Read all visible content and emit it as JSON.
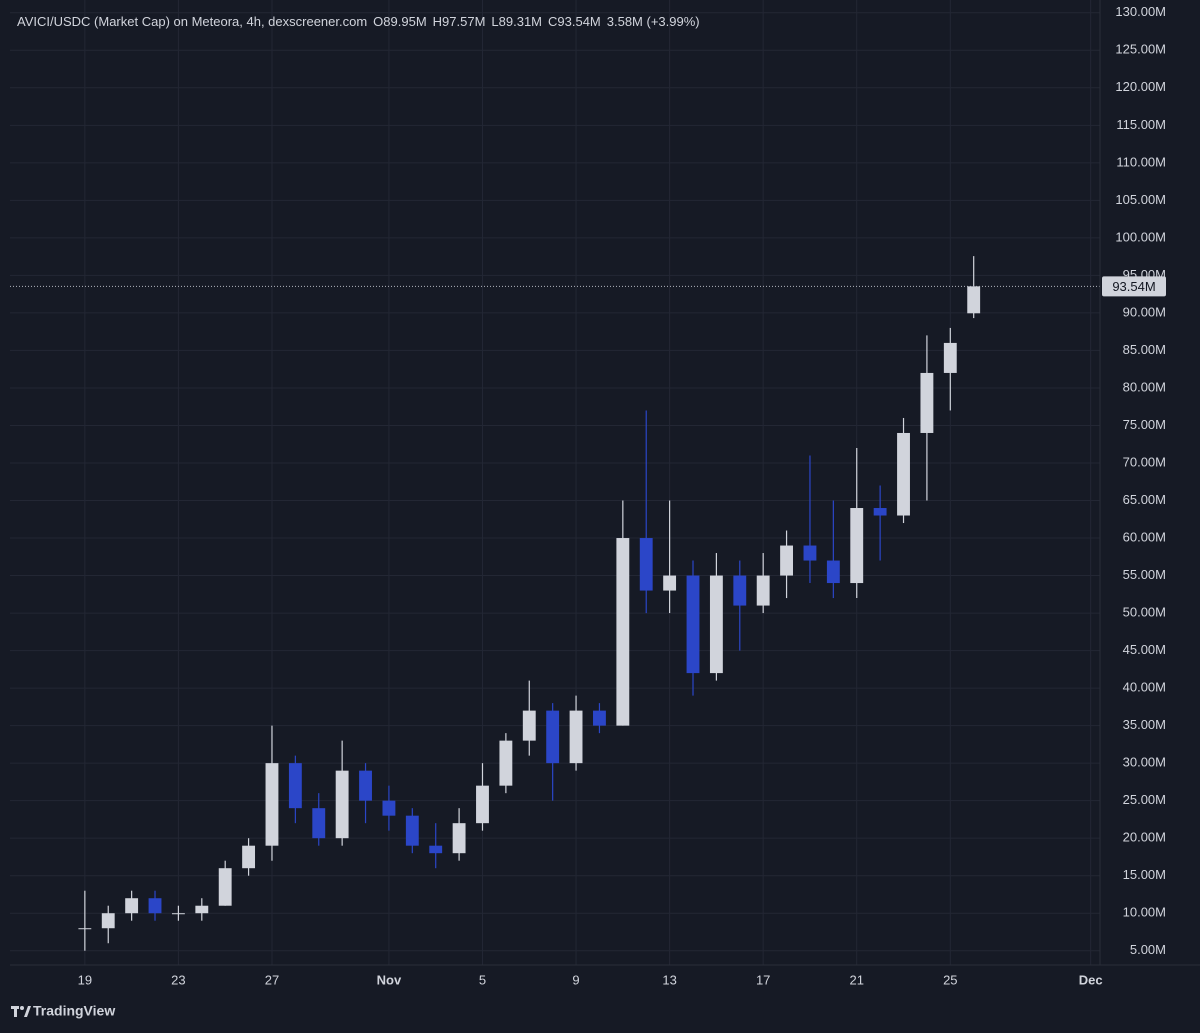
{
  "chart_data": {
    "type": "candlestick",
    "title": "AVICI/USDC (Market Cap) on Meteora, 4h, dexscreener.com",
    "ohlc_labels": [
      "O89.95M",
      "H97.57M",
      "L89.31M",
      "C93.54M",
      "3.58M (+3.99%)"
    ],
    "x": [
      0,
      1,
      2,
      3,
      4,
      5,
      6,
      7,
      8,
      9,
      10,
      11,
      12,
      13,
      14,
      15,
      16,
      17,
      18,
      19,
      20,
      21,
      22,
      23,
      24,
      25,
      26,
      27,
      28,
      29,
      30,
      31,
      32,
      33,
      34,
      35,
      36,
      37,
      38
    ],
    "open": [
      8,
      8,
      10,
      12,
      10,
      10,
      11,
      16,
      19,
      30,
      24,
      20,
      29,
      25,
      23,
      19,
      18,
      22,
      27,
      33,
      37,
      30,
      37,
      35,
      60,
      53,
      55,
      42,
      55,
      51,
      55,
      59,
      57,
      54,
      64,
      63,
      74,
      82,
      89.95
    ],
    "high": [
      13,
      11,
      13,
      13,
      11,
      12,
      17,
      20,
      35,
      31,
      26,
      33,
      30,
      27,
      24,
      22,
      24,
      30,
      34,
      41,
      38,
      39,
      38,
      65,
      77,
      65,
      57,
      58,
      57,
      58,
      61,
      71,
      65,
      72,
      67,
      76,
      87,
      88,
      97.57
    ],
    "low": [
      5,
      6,
      9,
      9,
      9,
      9,
      11,
      15,
      17,
      22,
      19,
      19,
      22,
      21,
      18,
      16,
      17,
      21,
      26,
      31,
      25,
      29,
      34,
      35,
      50,
      50,
      39,
      41,
      45,
      50,
      52,
      54,
      52,
      52,
      57,
      62,
      65,
      77,
      89.31
    ],
    "close": [
      8,
      10,
      12,
      10,
      10,
      11,
      16,
      19,
      30,
      24,
      20,
      29,
      25,
      23,
      19,
      18,
      22,
      27,
      33,
      37,
      30,
      37,
      35,
      60,
      53,
      55,
      42,
      55,
      51,
      55,
      59,
      57,
      54,
      64,
      63,
      74,
      82,
      86,
      93.54
    ],
    "up_color": "#d1d4dc",
    "down_color": "#2b46c8",
    "xlim": [
      -3.2,
      43.4
    ],
    "ylim": [
      3.1,
      131.7
    ],
    "xticks": [
      {
        "value": 0,
        "label": "19"
      },
      {
        "value": 4,
        "label": "23"
      },
      {
        "value": 8,
        "label": "27"
      },
      {
        "value": 13,
        "label": "Nov"
      },
      {
        "value": 17,
        "label": "5"
      },
      {
        "value": 21,
        "label": "9"
      },
      {
        "value": 25,
        "label": "13"
      },
      {
        "value": 29,
        "label": "17"
      },
      {
        "value": 33,
        "label": "21"
      },
      {
        "value": 37,
        "label": "25"
      },
      {
        "value": 43,
        "label": "Dec"
      }
    ],
    "yticks": [
      {
        "value": 5,
        "label": "5.00M"
      },
      {
        "value": 10,
        "label": "10.00M"
      },
      {
        "value": 15,
        "label": "15.00M"
      },
      {
        "value": 20,
        "label": "20.00M"
      },
      {
        "value": 25,
        "label": "25.00M"
      },
      {
        "value": 30,
        "label": "30.00M"
      },
      {
        "value": 35,
        "label": "35.00M"
      },
      {
        "value": 40,
        "label": "40.00M"
      },
      {
        "value": 45,
        "label": "45.00M"
      },
      {
        "value": 50,
        "label": "50.00M"
      },
      {
        "value": 55,
        "label": "55.00M"
      },
      {
        "value": 60,
        "label": "60.00M"
      },
      {
        "value": 65,
        "label": "65.00M"
      },
      {
        "value": 70,
        "label": "70.00M"
      },
      {
        "value": 75,
        "label": "75.00M"
      },
      {
        "value": 80,
        "label": "80.00M"
      },
      {
        "value": 85,
        "label": "85.00M"
      },
      {
        "value": 90,
        "label": "90.00M"
      },
      {
        "value": 95,
        "label": "95.00M"
      },
      {
        "value": 100,
        "label": "100.00M"
      },
      {
        "value": 105,
        "label": "105.00M"
      },
      {
        "value": 110,
        "label": "110.00M"
      },
      {
        "value": 115,
        "label": "115.00M"
      },
      {
        "value": 120,
        "label": "120.00M"
      },
      {
        "value": 125,
        "label": "125.00M"
      },
      {
        "value": 130,
        "label": "130.00M"
      }
    ],
    "price_label": {
      "value": 93.54,
      "label": "93.54M"
    },
    "grid": true,
    "watermark": "TradingView"
  }
}
